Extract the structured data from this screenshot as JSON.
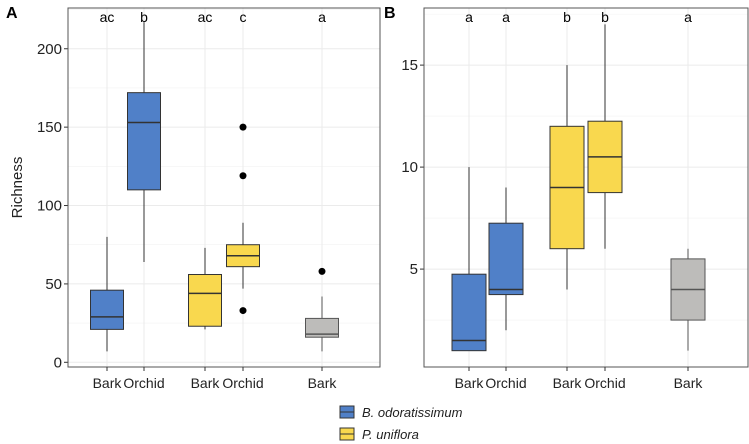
{
  "colors": {
    "blue": "#5080C8",
    "yellow": "#F9D84E",
    "gray": "#BDBCBA"
  },
  "legend": [
    {
      "label": "B. odoratissimum",
      "color": "#5080C8"
    },
    {
      "label": "P. uniflora",
      "color": "#F9D84E"
    }
  ],
  "chart_data": [
    {
      "type": "box",
      "panel": "A",
      "ylabel": "Richness",
      "ylim": [
        -3,
        226
      ],
      "yticks": [
        0,
        50,
        100,
        150,
        200
      ],
      "grid": true,
      "groups": [
        {
          "label": "Bark",
          "color": "blue",
          "letter": "ac",
          "whisker_low": 7,
          "q1": 21,
          "median": 29,
          "q3": 46,
          "whisker_high": 80,
          "outliers": []
        },
        {
          "label": "Orchid",
          "color": "blue",
          "letter": "b",
          "whisker_low": 64,
          "q1": 110,
          "median": 153,
          "q3": 172,
          "whisker_high": 217,
          "outliers": []
        },
        {
          "label": "Bark",
          "color": "yellow",
          "letter": "ac",
          "whisker_low": 21,
          "q1": 23,
          "median": 44,
          "q3": 56,
          "whisker_high": 73,
          "outliers": []
        },
        {
          "label": "Orchid",
          "color": "yellow",
          "letter": "c",
          "whisker_low": 47,
          "q1": 61,
          "median": 68,
          "q3": 75,
          "whisker_high": 89,
          "outliers": [
            150,
            119,
            33
          ]
        },
        {
          "label": "Bark",
          "color": "gray",
          "letter": "a",
          "whisker_low": 7,
          "q1": 16,
          "median": 18,
          "q3": 28,
          "whisker_high": 42,
          "outliers": [
            58
          ]
        }
      ]
    },
    {
      "type": "box",
      "panel": "B",
      "ylabel": "",
      "ylim": [
        0.2,
        17.8
      ],
      "yticks": [
        5,
        10,
        15
      ],
      "grid": true,
      "groups": [
        {
          "label": "Bark",
          "color": "blue",
          "letter": "a",
          "whisker_low": 1,
          "q1": 1,
          "median": 1.5,
          "q3": 4.75,
          "whisker_high": 10,
          "outliers": []
        },
        {
          "label": "Orchid",
          "color": "blue",
          "letter": "a",
          "whisker_low": 2,
          "q1": 3.75,
          "median": 4,
          "q3": 7.25,
          "whisker_high": 9,
          "outliers": []
        },
        {
          "label": "Bark",
          "color": "yellow",
          "letter": "b",
          "whisker_low": 4,
          "q1": 6,
          "median": 9,
          "q3": 12,
          "whisker_high": 15,
          "outliers": []
        },
        {
          "label": "Orchid",
          "color": "yellow",
          "letter": "b",
          "whisker_low": 6,
          "q1": 8.75,
          "median": 10.5,
          "q3": 12.25,
          "whisker_high": 17,
          "outliers": []
        },
        {
          "label": "Bark",
          "color": "gray",
          "letter": "a",
          "whisker_low": 1,
          "q1": 2.5,
          "median": 4,
          "q3": 5.5,
          "whisker_high": 6,
          "outliers": []
        }
      ]
    }
  ]
}
